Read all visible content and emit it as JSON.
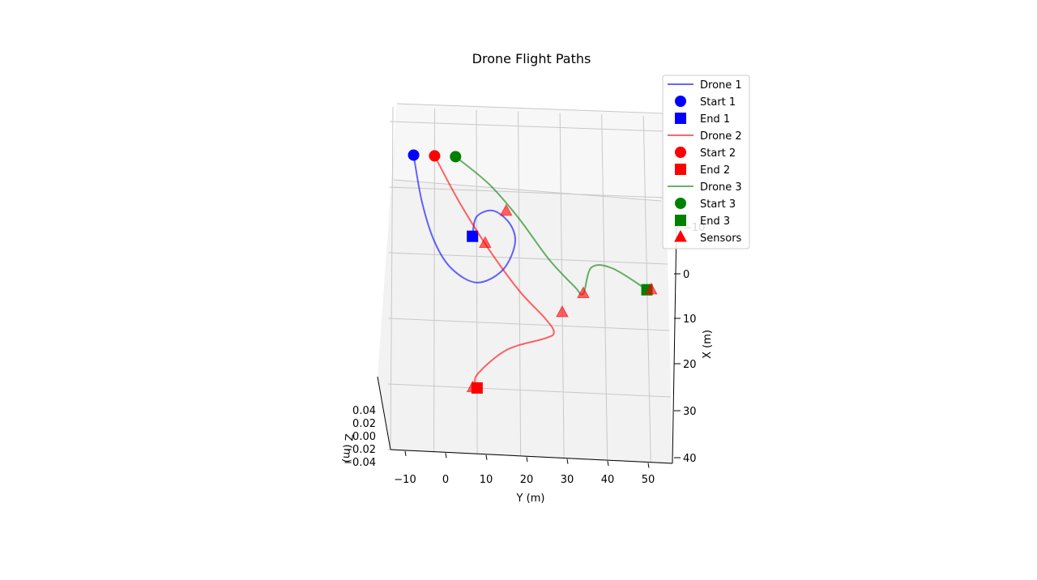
{
  "chart_data": {
    "type": "line",
    "projection": "3d",
    "title": "Drone Flight Paths",
    "xlabel": "X (m)",
    "ylabel": "Y (m)",
    "zlabel": "Z (m)",
    "xlim": [
      -10,
      40
    ],
    "ylim": [
      -10,
      55
    ],
    "zlim": [
      -0.05,
      0.05
    ],
    "x_ticks": [
      "−10",
      "0",
      "10",
      "20",
      "30",
      "40"
    ],
    "y_ticks": [
      "−10",
      "0",
      "10",
      "20",
      "30",
      "40",
      "50"
    ],
    "z_ticks": [
      "0.04",
      "0.02",
      "0.00",
      "−0.02",
      "−0.04"
    ],
    "grid": true,
    "legend_position": "top-right",
    "series": [
      {
        "name": "Drone 1",
        "color": "#0000ff",
        "x": [
          -5,
          2,
          8,
          12,
          14,
          12,
          8,
          5,
          3,
          4,
          7
        ],
        "y": [
          -5,
          -3,
          0,
          4,
          10,
          16,
          19,
          18,
          14,
          10,
          9
        ],
        "z": [
          0,
          0,
          0,
          0,
          0,
          0,
          0,
          0,
          0,
          0,
          0
        ]
      },
      {
        "name": "Start 1",
        "marker": "circle",
        "color": "#0000ff",
        "x": [
          -5
        ],
        "y": [
          -5
        ],
        "z": [
          0
        ]
      },
      {
        "name": "End 1",
        "marker": "square",
        "color": "#0000ff",
        "x": [
          7
        ],
        "y": [
          9
        ],
        "z": [
          0
        ]
      },
      {
        "name": "Drone 2",
        "color": "#ff0000",
        "x": [
          -5,
          2,
          9,
          15,
          19,
          21,
          22,
          24,
          28,
          30
        ],
        "y": [
          0,
          6,
          13,
          20,
          26,
          28,
          26,
          17,
          10,
          10
        ],
        "z": [
          0,
          0,
          0,
          0,
          0,
          0,
          0,
          0,
          0,
          0
        ]
      },
      {
        "name": "Start 2",
        "marker": "circle",
        "color": "#ff0000",
        "x": [
          -5
        ],
        "y": [
          0
        ],
        "z": [
          0
        ]
      },
      {
        "name": "End 2",
        "marker": "square",
        "color": "#ff0000",
        "x": [
          30
        ],
        "y": [
          10
        ],
        "z": [
          0
        ]
      },
      {
        "name": "Drone 3",
        "color": "#008000",
        "x": [
          -5,
          -1,
          4,
          10,
          14,
          15,
          11,
          11,
          14
        ],
        "y": [
          5,
          13,
          20,
          27,
          33,
          35,
          37,
          42,
          50
        ],
        "z": [
          0,
          0,
          0,
          0,
          0,
          0,
          0,
          0,
          0
        ]
      },
      {
        "name": "Start 3",
        "marker": "circle",
        "color": "#008000",
        "x": [
          -5
        ],
        "y": [
          5
        ],
        "z": [
          0
        ]
      },
      {
        "name": "End 3",
        "marker": "square",
        "color": "#008000",
        "x": [
          14
        ],
        "y": [
          50
        ],
        "z": [
          0
        ]
      },
      {
        "name": "Sensors",
        "marker": "triangle",
        "color": "#ff0000",
        "x": [
          3,
          8,
          18,
          15,
          30,
          14
        ],
        "y": [
          17,
          12,
          30,
          35,
          9,
          51
        ],
        "z": [
          0,
          0,
          0,
          0,
          0,
          0
        ]
      }
    ],
    "legend": [
      "Drone 1",
      "Start 1",
      "End 1",
      "Drone 2",
      "Start 2",
      "End 2",
      "Drone 3",
      "Start 3",
      "End 3",
      "Sensors"
    ]
  }
}
